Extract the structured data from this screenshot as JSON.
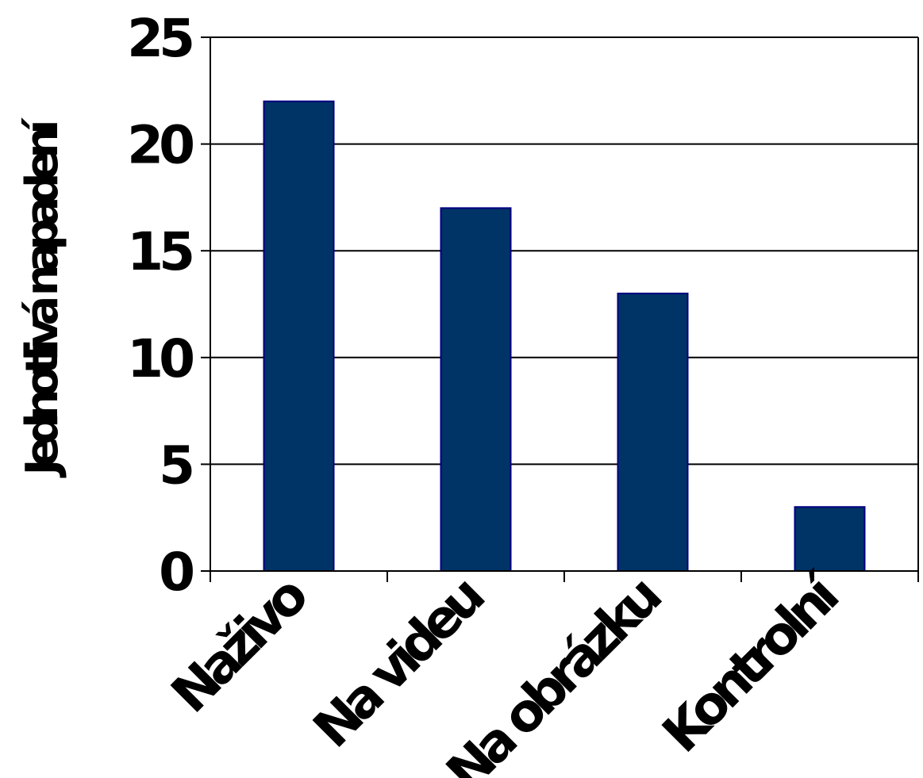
{
  "chart_data": {
    "type": "bar",
    "categories": [
      "Naživo",
      "Na videu",
      "Na obrázku",
      "Kontrolní"
    ],
    "values": [
      22,
      17,
      13,
      3
    ],
    "title": "",
    "xlabel": "",
    "ylabel": "Jednotlivá napadení",
    "ylim": [
      0,
      25
    ],
    "yticks": [
      0,
      5,
      10,
      15,
      20,
      25
    ],
    "grid": true,
    "bar_color": "#003366",
    "bar_edge_color": "#000080"
  }
}
